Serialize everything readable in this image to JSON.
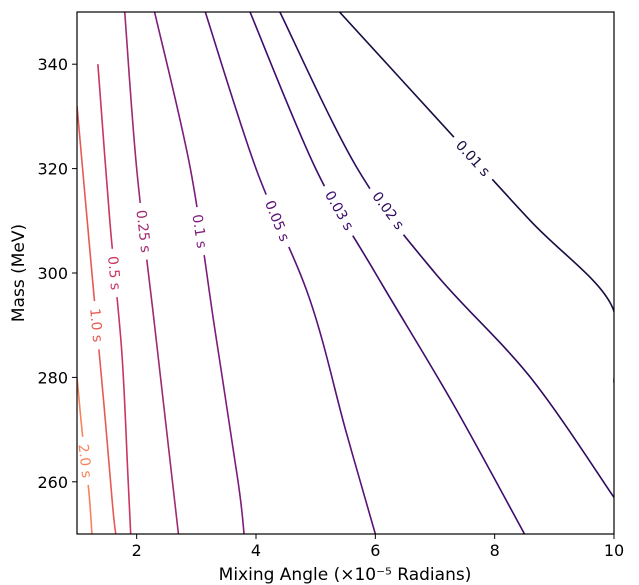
{
  "chart_data": {
    "type": "contour",
    "title": "",
    "xlabel": "Mixing Angle (×10⁻⁵ Radians)",
    "ylabel": "Mass (MeV)",
    "xlim": [
      1,
      10
    ],
    "ylim": [
      250,
      350
    ],
    "xticks": [
      2,
      4,
      6,
      8,
      10
    ],
    "yticks": [
      260,
      280,
      300,
      320,
      340
    ],
    "grid": false,
    "legend": "none",
    "levels": [
      {
        "label": "0.01 s",
        "color": "#1a0b40",
        "points": [
          [
            5.4,
            350
          ],
          [
            7.0,
            330
          ],
          [
            8.6,
            310
          ],
          [
            9.95,
            294
          ],
          [
            10,
            279
          ]
        ]
      },
      {
        "label": "0.02 s",
        "color": "#2e0a5e",
        "points": [
          [
            4.4,
            350
          ],
          [
            5.7,
            320
          ],
          [
            7.0,
            300
          ],
          [
            8.6,
            280
          ],
          [
            10,
            257
          ]
        ]
      },
      {
        "label": "0.03 s",
        "color": "#3d0c6e",
        "points": [
          [
            3.9,
            350
          ],
          [
            5.0,
            320
          ],
          [
            6.0,
            300
          ],
          [
            7.3,
            275
          ],
          [
            8.5,
            250
          ]
        ]
      },
      {
        "label": "0.05 s",
        "color": "#5a1278",
        "points": [
          [
            3.15,
            350
          ],
          [
            4.0,
            320
          ],
          [
            4.9,
            295
          ],
          [
            5.5,
            270
          ],
          [
            6.0,
            250
          ]
        ]
      },
      {
        "label": "0.1 s",
        "color": "#7e1c7c",
        "points": [
          [
            2.3,
            350
          ],
          [
            2.9,
            320
          ],
          [
            3.3,
            290
          ],
          [
            3.7,
            260
          ],
          [
            3.8,
            250
          ]
        ]
      },
      {
        "label": "0.25 s",
        "color": "#a0296f",
        "points": [
          [
            1.8,
            350
          ],
          [
            2.0,
            320
          ],
          [
            2.3,
            290
          ],
          [
            2.6,
            260
          ],
          [
            2.7,
            250
          ]
        ]
      },
      {
        "label": "0.5 s",
        "color": "#c9365f",
        "points": [
          [
            1.35,
            340
          ],
          [
            1.55,
            310
          ],
          [
            1.75,
            285
          ],
          [
            1.85,
            262
          ],
          [
            1.9,
            250
          ]
        ]
      },
      {
        "label": "1.0 s",
        "color": "#e65a53",
        "points": [
          [
            1.0,
            332
          ],
          [
            1.25,
            300
          ],
          [
            1.45,
            275
          ],
          [
            1.6,
            255
          ],
          [
            1.65,
            250
          ]
        ]
      },
      {
        "label": "2.0 s",
        "color": "#f4845c",
        "points": [
          [
            1.0,
            280
          ],
          [
            1.1,
            268
          ],
          [
            1.2,
            258
          ],
          [
            1.25,
            250
          ]
        ]
      }
    ]
  }
}
